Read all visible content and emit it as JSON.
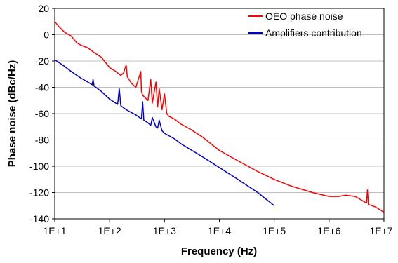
{
  "chart_data": {
    "type": "line",
    "title": "",
    "xlabel": "Frequency (Hz)",
    "ylabel": "Phase noise (dBc/Hz)",
    "x_scale": "log",
    "xlim": [
      10,
      10000000
    ],
    "ylim": [
      -140,
      20
    ],
    "grid": {
      "x": false,
      "y": true
    },
    "legend_position": "top-right",
    "x_tick_values": [
      10,
      100,
      1000,
      10000,
      100000,
      1000000,
      10000000
    ],
    "x_tick_labels": [
      "1E+1",
      "1E+2",
      "1E+3",
      "1E+4",
      "1E+5",
      "1E+6",
      "1E+7"
    ],
    "y_tick_values": [
      20,
      0,
      -20,
      -40,
      -60,
      -80,
      -100,
      -120,
      -140
    ],
    "y_tick_labels": [
      "20",
      "0",
      "-20",
      "-40",
      "-60",
      "-80",
      "-100",
      "-120",
      "-140"
    ],
    "series": [
      {
        "name": "OEO phase noise",
        "color": "#ff0000",
        "x": [
          10,
          12,
          15,
          20,
          25,
          30,
          40,
          50,
          70,
          100,
          130,
          160,
          180,
          200,
          210,
          250,
          300,
          370,
          380,
          400,
          500,
          560,
          600,
          700,
          750,
          800,
          900,
          1000,
          1100,
          1200,
          1500,
          2000,
          3000,
          5000,
          10000,
          20000,
          50000,
          100000,
          200000,
          500000,
          1000000,
          1500000,
          2000000,
          3000000,
          4800000,
          5000000,
          5200000,
          7000000,
          10000000
        ],
        "y": [
          10,
          6,
          2,
          -1,
          -6,
          -8,
          -10,
          -13,
          -17,
          -25,
          -28,
          -31,
          -29,
          -23,
          -32,
          -37,
          -40,
          -28,
          -43,
          -46,
          -50,
          -34,
          -52,
          -36,
          -55,
          -41,
          -57,
          -45,
          -60,
          -62,
          -64,
          -68,
          -72,
          -78,
          -88,
          -95,
          -104,
          -110,
          -115,
          -120,
          -123,
          -123,
          -122,
          -123,
          -128,
          -118,
          -129,
          -131,
          -135
        ]
      },
      {
        "name": "Amplifiers contribution",
        "color": "#0000cc",
        "x": [
          10,
          15,
          20,
          30,
          40,
          48,
          50,
          52,
          70,
          100,
          140,
          150,
          160,
          200,
          300,
          380,
          400,
          420,
          500,
          560,
          600,
          700,
          750,
          800,
          900,
          1000,
          1500,
          2000,
          5000,
          10000,
          20000,
          50000,
          100000
        ],
        "y": [
          -19,
          -24,
          -28,
          -33,
          -36,
          -38,
          -34,
          -39,
          -43,
          -49,
          -53,
          -41,
          -54,
          -57,
          -61,
          -64,
          -51,
          -65,
          -67,
          -69,
          -63,
          -70,
          -71,
          -65,
          -73,
          -75,
          -79,
          -83,
          -93,
          -101,
          -109,
          -120,
          -130
        ]
      }
    ]
  }
}
